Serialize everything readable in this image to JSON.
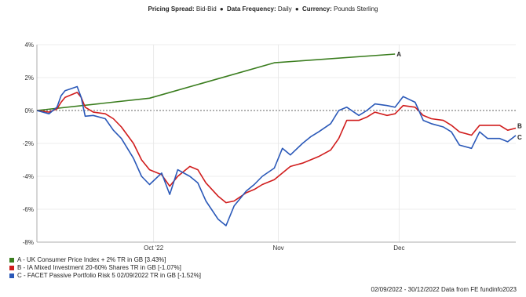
{
  "header": {
    "spread_key": "Pricing Spread:",
    "spread_val": "Bid-Bid",
    "freq_key": "Data Frequency:",
    "freq_val": "Daily",
    "curr_key": "Currency:",
    "curr_val": "Pounds Sterling",
    "separator": "●"
  },
  "chart_data": {
    "type": "line",
    "ylim": [
      -8,
      4
    ],
    "y_ticks": [
      4,
      2,
      0,
      -2,
      -4,
      -6,
      -8
    ],
    "y_tick_labels": [
      "4%",
      "2%",
      "0%",
      "-2%",
      "-4%",
      "-6%",
      "-8%"
    ],
    "x_range": [
      "2022-09-02",
      "2022-12-30"
    ],
    "x_ticks": [
      {
        "date": "2022-10-01",
        "label": "Oct '22"
      },
      {
        "date": "2022-11-01",
        "label": "Nov"
      },
      {
        "date": "2022-12-01",
        "label": "Dec"
      }
    ],
    "zero_line": true,
    "series": [
      {
        "letter": "A",
        "color": "#3a7d1e",
        "points": [
          [
            "2022-09-02",
            0.0
          ],
          [
            "2022-09-30",
            0.75
          ],
          [
            "2022-10-31",
            2.9
          ],
          [
            "2022-11-30",
            3.43
          ]
        ]
      },
      {
        "letter": "B",
        "color": "#d01c1c",
        "points": [
          [
            "2022-09-02",
            0.0
          ],
          [
            "2022-09-05",
            -0.1
          ],
          [
            "2022-09-07",
            0.1
          ],
          [
            "2022-09-08",
            0.5
          ],
          [
            "2022-09-09",
            0.8
          ],
          [
            "2022-09-12",
            1.1
          ],
          [
            "2022-09-13",
            0.8
          ],
          [
            "2022-09-14",
            0.2
          ],
          [
            "2022-09-16",
            -0.1
          ],
          [
            "2022-09-19",
            -0.2
          ],
          [
            "2022-09-21",
            -0.5
          ],
          [
            "2022-09-23",
            -1.0
          ],
          [
            "2022-09-26",
            -2.0
          ],
          [
            "2022-09-28",
            -3.0
          ],
          [
            "2022-09-30",
            -3.6
          ],
          [
            "2022-10-03",
            -3.9
          ],
          [
            "2022-10-05",
            -4.6
          ],
          [
            "2022-10-07",
            -4.0
          ],
          [
            "2022-10-10",
            -3.4
          ],
          [
            "2022-10-12",
            -3.6
          ],
          [
            "2022-10-14",
            -4.4
          ],
          [
            "2022-10-17",
            -5.2
          ],
          [
            "2022-10-19",
            -5.6
          ],
          [
            "2022-10-21",
            -5.5
          ],
          [
            "2022-10-24",
            -5.0
          ],
          [
            "2022-10-26",
            -4.8
          ],
          [
            "2022-10-28",
            -4.5
          ],
          [
            "2022-10-31",
            -4.2
          ],
          [
            "2022-11-02",
            -3.8
          ],
          [
            "2022-11-04",
            -3.4
          ],
          [
            "2022-11-07",
            -3.2
          ],
          [
            "2022-11-09",
            -3.0
          ],
          [
            "2022-11-11",
            -2.8
          ],
          [
            "2022-11-14",
            -2.4
          ],
          [
            "2022-11-16",
            -1.7
          ],
          [
            "2022-11-18",
            -0.6
          ],
          [
            "2022-11-21",
            -0.6
          ],
          [
            "2022-11-23",
            -0.4
          ],
          [
            "2022-11-25",
            -0.1
          ],
          [
            "2022-11-28",
            -0.3
          ],
          [
            "2022-11-30",
            -0.2
          ],
          [
            "2022-12-02",
            0.3
          ],
          [
            "2022-12-05",
            0.2
          ],
          [
            "2022-12-07",
            -0.3
          ],
          [
            "2022-12-09",
            -0.5
          ],
          [
            "2022-12-12",
            -0.6
          ],
          [
            "2022-12-14",
            -0.9
          ],
          [
            "2022-12-16",
            -1.3
          ],
          [
            "2022-12-19",
            -1.5
          ],
          [
            "2022-12-21",
            -0.9
          ],
          [
            "2022-12-23",
            -0.9
          ],
          [
            "2022-12-26",
            -0.9
          ],
          [
            "2022-12-28",
            -1.2
          ],
          [
            "2022-12-30",
            -1.07
          ]
        ]
      },
      {
        "letter": "C",
        "color": "#2a58b8",
        "points": [
          [
            "2022-09-02",
            0.0
          ],
          [
            "2022-09-05",
            -0.2
          ],
          [
            "2022-09-07",
            0.2
          ],
          [
            "2022-09-08",
            0.9
          ],
          [
            "2022-09-09",
            1.2
          ],
          [
            "2022-09-12",
            1.45
          ],
          [
            "2022-09-13",
            0.8
          ],
          [
            "2022-09-14",
            -0.35
          ],
          [
            "2022-09-16",
            -0.3
          ],
          [
            "2022-09-19",
            -0.5
          ],
          [
            "2022-09-21",
            -1.2
          ],
          [
            "2022-09-23",
            -1.7
          ],
          [
            "2022-09-26",
            -2.9
          ],
          [
            "2022-09-28",
            -4.0
          ],
          [
            "2022-09-30",
            -4.5
          ],
          [
            "2022-10-03",
            -3.8
          ],
          [
            "2022-10-05",
            -5.1
          ],
          [
            "2022-10-07",
            -3.6
          ],
          [
            "2022-10-10",
            -4.0
          ],
          [
            "2022-10-12",
            -4.4
          ],
          [
            "2022-10-14",
            -5.5
          ],
          [
            "2022-10-17",
            -6.6
          ],
          [
            "2022-10-19",
            -7.0
          ],
          [
            "2022-10-21",
            -5.8
          ],
          [
            "2022-10-24",
            -4.9
          ],
          [
            "2022-10-26",
            -4.5
          ],
          [
            "2022-10-28",
            -4.0
          ],
          [
            "2022-10-31",
            -3.5
          ],
          [
            "2022-11-02",
            -2.3
          ],
          [
            "2022-11-04",
            -2.7
          ],
          [
            "2022-11-07",
            -2.0
          ],
          [
            "2022-11-09",
            -1.6
          ],
          [
            "2022-11-11",
            -1.3
          ],
          [
            "2022-11-14",
            -0.8
          ],
          [
            "2022-11-16",
            0.0
          ],
          [
            "2022-11-18",
            0.2
          ],
          [
            "2022-11-21",
            -0.3
          ],
          [
            "2022-11-23",
            0.0
          ],
          [
            "2022-11-25",
            0.4
          ],
          [
            "2022-11-28",
            0.3
          ],
          [
            "2022-11-30",
            0.2
          ],
          [
            "2022-12-02",
            0.85
          ],
          [
            "2022-12-05",
            0.5
          ],
          [
            "2022-12-07",
            -0.6
          ],
          [
            "2022-12-09",
            -0.8
          ],
          [
            "2022-12-12",
            -1.0
          ],
          [
            "2022-12-14",
            -1.3
          ],
          [
            "2022-12-16",
            -2.1
          ],
          [
            "2022-12-19",
            -2.3
          ],
          [
            "2022-12-21",
            -1.3
          ],
          [
            "2022-12-23",
            -1.7
          ],
          [
            "2022-12-26",
            -1.7
          ],
          [
            "2022-12-28",
            -1.9
          ],
          [
            "2022-12-30",
            -1.52
          ]
        ]
      }
    ]
  },
  "legend": [
    {
      "text": "A - UK Consumer Price Index + 2% TR in GB [3.43%]",
      "color": "#3a7d1e"
    },
    {
      "text": "B - IA Mixed Investment 20-60% Shares TR in GB [-1.07%]",
      "color": "#d01c1c"
    },
    {
      "text": "C - FACET Passive Portfolio Risk 5 02/09/2022 TR in GB [-1.52%]",
      "color": "#2a58b8"
    }
  ],
  "footer": "02/09/2022 - 30/12/2022 Data from FE fundinfo2023"
}
